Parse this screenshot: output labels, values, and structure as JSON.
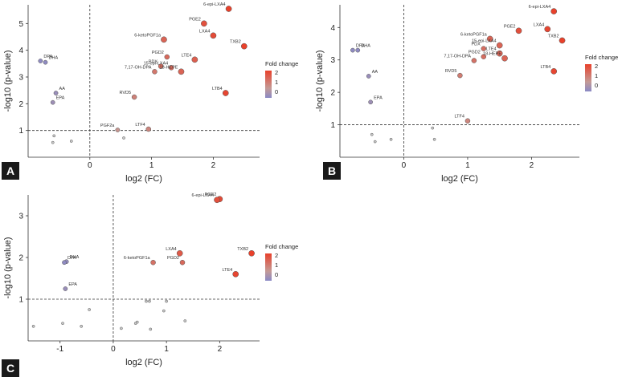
{
  "colorbar": {
    "title": "Fold change",
    "ticks": [
      "2",
      "1",
      "0"
    ],
    "colors": {
      "high": "#e8412b",
      "mid": "#c49a96",
      "low": "#8a8ac6"
    }
  },
  "chart_data": [
    {
      "panel": "A",
      "type": "scatter",
      "xlabel": "log2 (FC)",
      "ylabel": "-log10 (p-value)",
      "xlim": [
        -1,
        2.75
      ],
      "ylim": [
        0,
        5.7
      ],
      "xticks": [
        0,
        1,
        2
      ],
      "yticks": [
        1,
        2,
        3,
        4,
        5
      ],
      "threshold_y": 1,
      "points": [
        {
          "label": "6-epi-LXA4",
          "x": 2.25,
          "y": 5.55,
          "fc": 2.3
        },
        {
          "label": "PGE2",
          "x": 1.85,
          "y": 5.0,
          "fc": 2.0
        },
        {
          "label": "LXA4",
          "x": 2.0,
          "y": 4.55,
          "fc": 2.1
        },
        {
          "label": "6-ketoPGF1a",
          "x": 1.2,
          "y": 4.4,
          "fc": 1.6
        },
        {
          "label": "TXB2",
          "x": 2.5,
          "y": 4.15,
          "fc": 2.4
        },
        {
          "label": "PGD2",
          "x": 1.25,
          "y": 3.75,
          "fc": 1.5
        },
        {
          "label": "LTE4",
          "x": 1.7,
          "y": 3.65,
          "fc": 1.7
        },
        {
          "label": "PDX",
          "x": 1.15,
          "y": 3.4,
          "fc": 1.4
        },
        {
          "label": "15-epi-LXA4",
          "x": 1.32,
          "y": 3.35,
          "fc": 1.5
        },
        {
          "label": "7,17-OH-DPA",
          "x": 1.05,
          "y": 3.2,
          "fc": 1.2
        },
        {
          "label": "18-HEPE",
          "x": 1.48,
          "y": 3.2,
          "fc": 1.6
        },
        {
          "label": "LTB4",
          "x": 2.2,
          "y": 2.4,
          "fc": 2.2
        },
        {
          "label": "RVD5",
          "x": 0.72,
          "y": 2.25,
          "fc": 1.0
        },
        {
          "label": "DPA",
          "x": -0.8,
          "y": 3.6,
          "fc": -0.6
        },
        {
          "label": "DHA",
          "x": -0.72,
          "y": 3.55,
          "fc": -0.6
        },
        {
          "label": "AA",
          "x": -0.55,
          "y": 2.4,
          "fc": -0.4
        },
        {
          "label": "EPA",
          "x": -0.6,
          "y": 2.05,
          "fc": -0.3
        },
        {
          "label": "PGF2a",
          "x": 0.45,
          "y": 1.02,
          "fc": 0.6
        },
        {
          "label": "LTF4",
          "x": 0.95,
          "y": 1.05,
          "fc": 0.9
        },
        {
          "label": "",
          "x": -0.58,
          "y": 0.8,
          "fc": 0.2
        },
        {
          "label": "",
          "x": -0.6,
          "y": 0.55,
          "fc": 0.2
        },
        {
          "label": "",
          "x": -0.3,
          "y": 0.6,
          "fc": 0.2
        },
        {
          "label": "",
          "x": 0.55,
          "y": 0.72,
          "fc": 0.4
        }
      ]
    },
    {
      "panel": "B",
      "type": "scatter",
      "xlabel": "log2 (FC)",
      "ylabel": "-log10 (p-value)",
      "xlim": [
        -1,
        2.75
      ],
      "ylim": [
        0,
        4.7
      ],
      "xticks": [
        0,
        1,
        2
      ],
      "yticks": [
        1,
        2,
        3,
        4
      ],
      "threshold_y": 1,
      "points": [
        {
          "label": "6-epi-LXA4",
          "x": 2.35,
          "y": 4.5,
          "fc": 2.3
        },
        {
          "label": "LXA4",
          "x": 2.25,
          "y": 3.95,
          "fc": 2.2
        },
        {
          "label": "PGE2",
          "x": 1.8,
          "y": 3.9,
          "fc": 2.0
        },
        {
          "label": "TXB2",
          "x": 2.48,
          "y": 3.6,
          "fc": 2.4
        },
        {
          "label": "6-ketoPGF1a",
          "x": 1.35,
          "y": 3.65,
          "fc": 1.6
        },
        {
          "label": "15-epi-LXA4",
          "x": 1.5,
          "y": 3.45,
          "fc": 1.6
        },
        {
          "label": "PDX",
          "x": 1.25,
          "y": 3.35,
          "fc": 1.4
        },
        {
          "label": "LTE4",
          "x": 1.5,
          "y": 3.2,
          "fc": 1.6
        },
        {
          "label": "PGD2",
          "x": 1.25,
          "y": 3.1,
          "fc": 1.4
        },
        {
          "label": "18-HEPE",
          "x": 1.58,
          "y": 3.05,
          "fc": 1.6
        },
        {
          "label": "7,17-OH-DPA",
          "x": 1.1,
          "y": 2.98,
          "fc": 1.3
        },
        {
          "label": "LTB4",
          "x": 2.35,
          "y": 2.65,
          "fc": 2.2
        },
        {
          "label": "RVD5",
          "x": 0.88,
          "y": 2.52,
          "fc": 1.1
        },
        {
          "label": "DPA",
          "x": -0.8,
          "y": 3.3,
          "fc": -0.6
        },
        {
          "label": "DHA",
          "x": -0.72,
          "y": 3.3,
          "fc": -0.6
        },
        {
          "label": "AA",
          "x": -0.55,
          "y": 2.5,
          "fc": -0.4
        },
        {
          "label": "EPA",
          "x": -0.52,
          "y": 1.7,
          "fc": -0.3
        },
        {
          "label": "LTF4",
          "x": 1.0,
          "y": 1.12,
          "fc": 0.9
        },
        {
          "label": "",
          "x": -0.5,
          "y": 0.7,
          "fc": 0.2
        },
        {
          "label": "",
          "x": -0.45,
          "y": 0.48,
          "fc": 0.2
        },
        {
          "label": "",
          "x": -0.2,
          "y": 0.55,
          "fc": 0.2
        },
        {
          "label": "",
          "x": 0.45,
          "y": 0.9,
          "fc": 0.3
        },
        {
          "label": "",
          "x": 0.48,
          "y": 0.55,
          "fc": 0.3
        }
      ]
    },
    {
      "panel": "C",
      "type": "scatter",
      "xlabel": "log2 (FC)",
      "ylabel": "-log10 (p-value)",
      "xlim": [
        -1.6,
        2.75
      ],
      "ylim": [
        0,
        3.5
      ],
      "xticks": [
        -1,
        0,
        1,
        2
      ],
      "yticks": [
        1,
        2,
        3
      ],
      "threshold_y": 1,
      "points": [
        {
          "label": "PGE2",
          "x": 2.0,
          "y": 3.4,
          "fc": 2.1
        },
        {
          "label": "6-epi-LXA4",
          "x": 1.95,
          "y": 3.38,
          "fc": 2.0
        },
        {
          "label": "LXA4",
          "x": 1.25,
          "y": 2.1,
          "fc": 1.8
        },
        {
          "label": "TXB2",
          "x": 2.6,
          "y": 2.1,
          "fc": 2.4
        },
        {
          "label": "6-ketoPGF1a",
          "x": 0.75,
          "y": 1.88,
          "fc": 1.3
        },
        {
          "label": "PGD2",
          "x": 1.3,
          "y": 1.88,
          "fc": 1.5
        },
        {
          "label": "LTE4",
          "x": 2.3,
          "y": 1.6,
          "fc": 2.2
        },
        {
          "label": "DHA",
          "x": -0.88,
          "y": 1.9,
          "fc": -0.5
        },
        {
          "label": "DPA",
          "x": -0.92,
          "y": 1.88,
          "fc": -0.6
        },
        {
          "label": "EPA",
          "x": -0.9,
          "y": 1.25,
          "fc": -0.4
        },
        {
          "label": "",
          "x": -1.5,
          "y": 0.35,
          "fc": 0.1
        },
        {
          "label": "",
          "x": -0.95,
          "y": 0.42,
          "fc": 0.1
        },
        {
          "label": "",
          "x": -0.6,
          "y": 0.35,
          "fc": 0.1
        },
        {
          "label": "",
          "x": -0.45,
          "y": 0.75,
          "fc": 0.1
        },
        {
          "label": "",
          "x": 0.15,
          "y": 0.3,
          "fc": 0.2
        },
        {
          "label": "",
          "x": 0.42,
          "y": 0.42,
          "fc": 0.2
        },
        {
          "label": "",
          "x": 0.45,
          "y": 0.45,
          "fc": 0.2
        },
        {
          "label": "",
          "x": 0.62,
          "y": 0.95,
          "fc": 0.3
        },
        {
          "label": "",
          "x": 0.68,
          "y": 0.95,
          "fc": 0.3
        },
        {
          "label": "",
          "x": 0.7,
          "y": 0.28,
          "fc": 0.3
        },
        {
          "label": "",
          "x": 0.95,
          "y": 0.72,
          "fc": 0.3
        },
        {
          "label": "",
          "x": 1.0,
          "y": 0.95,
          "fc": 0.3
        },
        {
          "label": "",
          "x": 1.35,
          "y": 0.48,
          "fc": 0.3
        }
      ]
    }
  ]
}
